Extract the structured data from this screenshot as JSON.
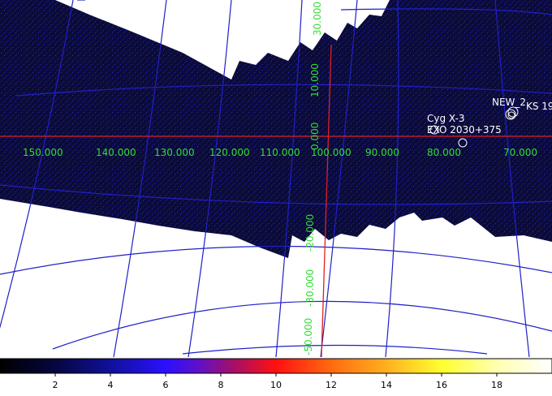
{
  "image": {
    "background_color": "#ffffff",
    "exposure_fill": "#0b0b38",
    "grid_color": "#2020c8",
    "axis_color": "#e02020",
    "label_color": "#33dd33",
    "source_color": "#ffffff"
  },
  "grid_labels": {
    "longitude": [
      "150.000",
      "140.000",
      "130.000",
      "120.000",
      "110.000",
      "100.000",
      "90.000",
      "80.000",
      "70.000"
    ],
    "latitude": [
      "30.000",
      "10.000",
      "0.000",
      "-20.000",
      "-30.000",
      "-50.000"
    ]
  },
  "sources": [
    {
      "name": "Cyg X-3",
      "marker": "circle-icon"
    },
    {
      "name": "EXO 2030+375",
      "marker": "circle-icon"
    },
    {
      "name": "NEW_2",
      "marker": "circle-icon"
    },
    {
      "name": "KS 19",
      "marker": "circle-icon"
    }
  ],
  "colorbar": {
    "ticks": [
      "2",
      "4",
      "6",
      "8",
      "10",
      "12",
      "14",
      "16",
      "18"
    ]
  }
}
